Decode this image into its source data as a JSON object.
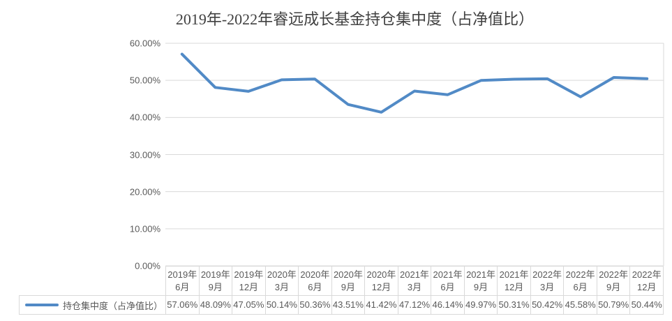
{
  "chart_data": {
    "type": "line",
    "title": "2019年-2022年睿远成长基金持仓集中度（占净值比）",
    "xlabel": "",
    "ylabel": "",
    "ylim": [
      0,
      60
    ],
    "grid": true,
    "legend_position": "bottom-left-table",
    "y_ticks": [
      "60.00%",
      "50.00%",
      "40.00%",
      "30.00%",
      "20.00%",
      "10.00%",
      "0.00%"
    ],
    "categories": [
      "2019年6月",
      "2019年9月",
      "2019年12月",
      "2020年3月",
      "2020年6月",
      "2020年9月",
      "2020年12月",
      "2021年3月",
      "2021年6月",
      "2021年9月",
      "2021年12月",
      "2022年3月",
      "2022年6月",
      "2022年9月",
      "2022年12月"
    ],
    "categories_display": [
      [
        "2019年",
        "6月"
      ],
      [
        "2019年",
        "9月"
      ],
      [
        "2019年",
        "12月"
      ],
      [
        "2020年",
        "3月"
      ],
      [
        "2020年",
        "6月"
      ],
      [
        "2020年",
        "9月"
      ],
      [
        "2020年",
        "12月"
      ],
      [
        "2021年",
        "3月"
      ],
      [
        "2021年",
        "6月"
      ],
      [
        "2021年",
        "9月"
      ],
      [
        "2021年",
        "12月"
      ],
      [
        "2022年",
        "3月"
      ],
      [
        "2022年",
        "6月"
      ],
      [
        "2022年",
        "9月"
      ],
      [
        "2022年",
        "12月"
      ]
    ],
    "series": [
      {
        "name": "持仓集中度（占净值比）",
        "values": [
          57.06,
          48.09,
          47.05,
          50.14,
          50.36,
          43.51,
          41.42,
          47.12,
          46.14,
          49.97,
          50.31,
          50.42,
          45.58,
          50.79,
          50.44
        ],
        "labels": [
          "57.06%",
          "48.09%",
          "47.05%",
          "50.14%",
          "50.36%",
          "43.51%",
          "41.42%",
          "47.12%",
          "46.14%",
          "49.97%",
          "50.31%",
          "50.42%",
          "45.58%",
          "50.79%",
          "50.44%"
        ],
        "color": "#518ac6"
      }
    ],
    "colors": {
      "line": "#518ac6",
      "grid": "#d9d9d9",
      "axis_text": "#595959",
      "title_text": "#404040",
      "table_border": "#d9d9d9"
    }
  }
}
